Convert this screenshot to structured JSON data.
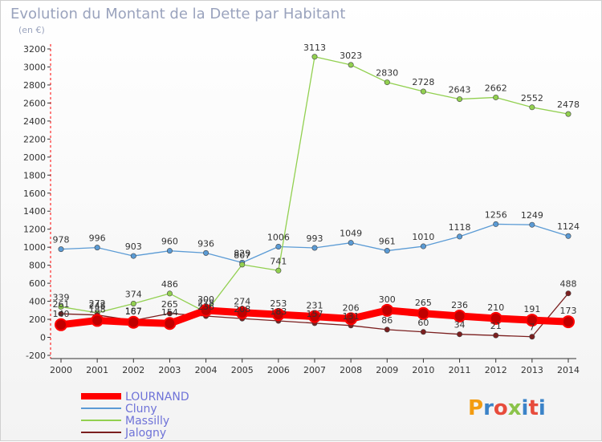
{
  "chart_data": {
    "type": "line",
    "title": "Evolution du Montant de la Dette par Habitant",
    "subtitle": "(en €)",
    "x": [
      "2000",
      "2001",
      "2002",
      "2003",
      "2004",
      "2005",
      "2006",
      "2007",
      "2008",
      "2009",
      "2010",
      "2011",
      "2012",
      "2013",
      "2014"
    ],
    "ylim": [
      -200,
      3200
    ],
    "yticks": [
      -200,
      0,
      200,
      400,
      600,
      800,
      1000,
      1200,
      1400,
      1600,
      1800,
      2000,
      2200,
      2400,
      2600,
      2800,
      3000,
      3200
    ],
    "grid": false,
    "legend_position": "bottom-left",
    "series": [
      {
        "name": "LOURNAND",
        "color": "#ff0000",
        "values": [
          140,
          188,
          167,
          154,
          300,
          274,
          253,
          231,
          206,
          300,
          265,
          236,
          210,
          191,
          173
        ]
      },
      {
        "name": "Cluny",
        "color": "#5b9bd5",
        "values": [
          978,
          996,
          903,
          960,
          936,
          829,
          1006,
          993,
          1049,
          961,
          1010,
          1118,
          1256,
          1249,
          1124
        ]
      },
      {
        "name": "Massilly",
        "color": "#92d050",
        "values": [
          339,
          272,
          374,
          486,
          278,
          807,
          741,
          3113,
          3023,
          2830,
          2728,
          2643,
          2662,
          2552,
          2478
        ]
      },
      {
        "name": "Jalogny",
        "color": "#7b1f1f",
        "values": [
          261,
          248,
          187,
          265,
          236,
          208,
          183,
          157,
          131,
          86,
          60,
          34,
          21,
          7,
          488
        ]
      }
    ]
  },
  "brand": {
    "text": "Proxiti",
    "colors": [
      "#f39c12",
      "#3b83c8",
      "#e74c3c",
      "#8bc34a",
      "#3b83c8",
      "#e74c3c",
      "#3b83c8"
    ]
  }
}
